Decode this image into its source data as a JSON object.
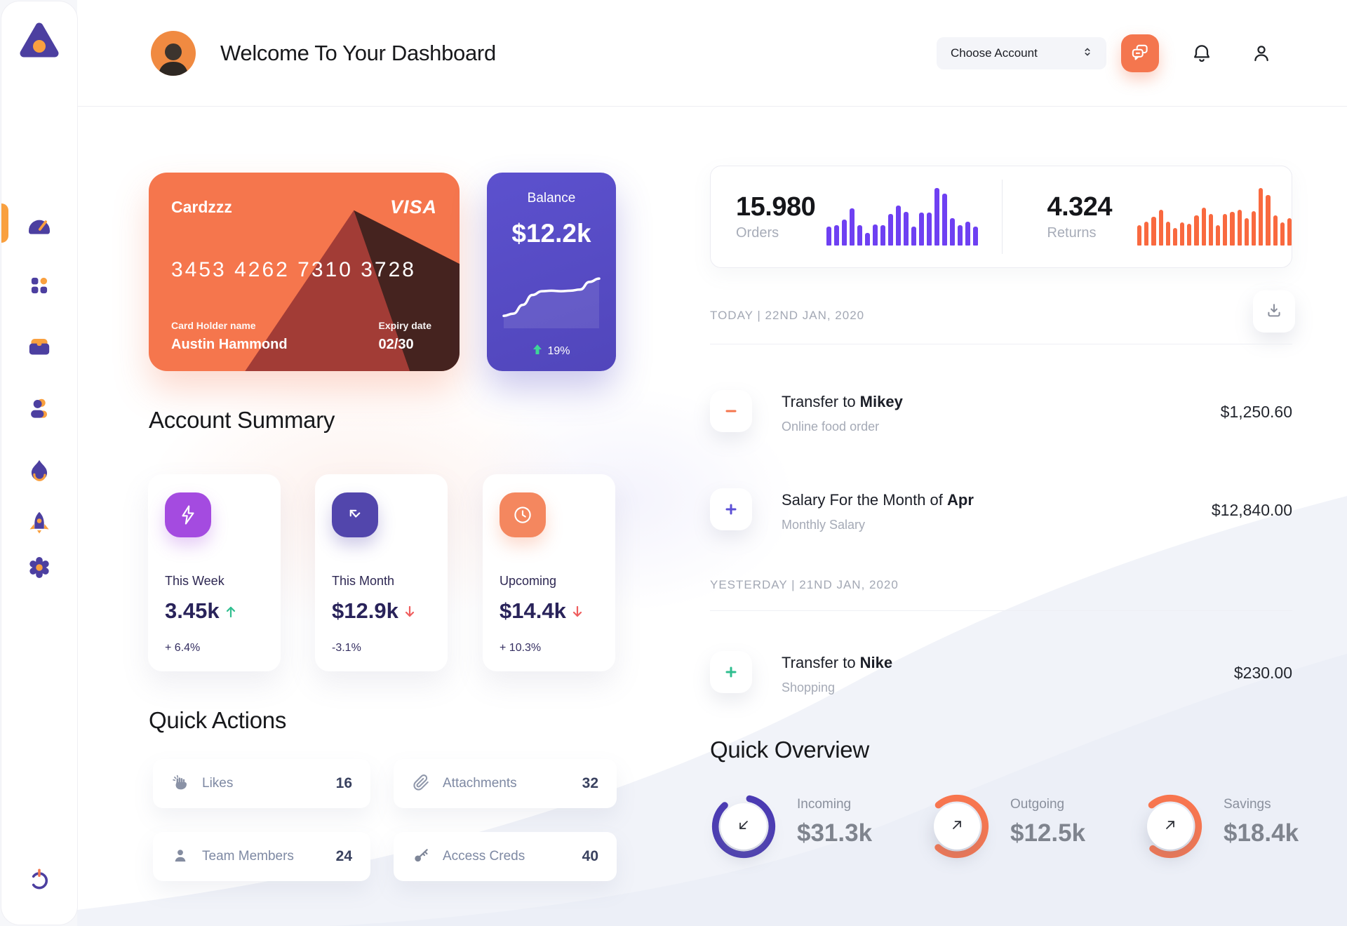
{
  "header": {
    "title": "Welcome To Your Dashboard",
    "account_selector": "Choose Account"
  },
  "credit_card": {
    "name": "Cardzzz",
    "brand": "VISA",
    "number": "3453 4262 7310 3728",
    "holder_label": "Card Holder name",
    "holder_name": "Austin Hammond",
    "expiry_label": "Expiry date",
    "expiry": "02/30"
  },
  "balance_card": {
    "label": "Balance",
    "value": "$12.2k",
    "change": "19%"
  },
  "account_summary": {
    "title": "Account Summary",
    "cards": [
      {
        "label": "This Week",
        "value": "3.45k",
        "delta": "+ 6.4%",
        "trend": "up",
        "icon": "lightning-icon",
        "icon_color": "#A44BE0"
      },
      {
        "label": "This Month",
        "value": "$12.9k",
        "delta": "-3.1%",
        "trend": "down",
        "icon": "arrow-up-left-icon",
        "icon_color": "#5246AC"
      },
      {
        "label": "Upcoming",
        "value": "$14.4k",
        "delta": "+ 10.3%",
        "trend": "down",
        "icon": "clock-icon",
        "icon_color": "#F4875F"
      }
    ]
  },
  "quick_actions": {
    "title": "Quick Actions",
    "items": [
      {
        "label": "Likes",
        "count": "16",
        "icon": "clap-icon"
      },
      {
        "label": "Attachments",
        "count": "32",
        "icon": "paperclip-icon"
      },
      {
        "label": "Team Members",
        "count": "24",
        "icon": "person-icon"
      },
      {
        "label": "Access Creds",
        "count": "40",
        "icon": "key-icon"
      }
    ]
  },
  "stats": {
    "orders": {
      "value": "15.980",
      "label": "Orders"
    },
    "returns": {
      "value": "4.324",
      "label": "Returns"
    }
  },
  "chart_data": [
    {
      "id": "orders-spark",
      "type": "bar",
      "title": "Orders activity sparkline",
      "values": [
        33,
        35,
        45,
        65,
        35,
        22,
        36,
        35,
        55,
        70,
        58,
        33,
        57,
        57,
        100,
        90,
        48,
        35,
        42,
        33
      ],
      "ylim": [
        0,
        100
      ],
      "color": "#6E40F2",
      "grid": false,
      "legend": false,
      "xlabel": "",
      "ylabel": ""
    },
    {
      "id": "returns-spark",
      "type": "bar",
      "title": "Returns activity sparkline",
      "values": [
        35,
        42,
        50,
        62,
        42,
        30,
        40,
        38,
        52,
        66,
        55,
        35,
        55,
        58,
        62,
        48,
        60,
        100,
        88,
        52,
        40,
        48
      ],
      "ylim": [
        0,
        100
      ],
      "color": "#F9693F",
      "grid": false,
      "legend": false,
      "xlabel": "",
      "ylabel": ""
    },
    {
      "id": "balance-line",
      "type": "line",
      "title": "Balance trend",
      "values": [
        10,
        14,
        30,
        48,
        55,
        56,
        55,
        56,
        58,
        72,
        78
      ],
      "ylim": [
        0,
        100
      ],
      "color": "#FFFFFF",
      "grid": false,
      "legend": false,
      "xlabel": "",
      "ylabel": ""
    }
  ],
  "transactions": {
    "groups": [
      {
        "date_header": "TODAY | 22ND JAN, 2020",
        "rows": [
          {
            "title_prefix": "Transfer to ",
            "title_bold": "Mikey",
            "subtitle": "Online food order",
            "amount": "$1,250.60",
            "sign": "minus",
            "sign_color": "#F4764E"
          },
          {
            "title_prefix": "Salary For the Month of ",
            "title_bold": "Apr",
            "subtitle": "Monthly Salary",
            "amount": "$12,840.00",
            "sign": "plus",
            "sign_color": "#5B4FD6"
          }
        ]
      },
      {
        "date_header": "YESTERDAY | 21ND JAN, 2020",
        "rows": [
          {
            "title_prefix": "Transfer to ",
            "title_bold": "Nike",
            "subtitle": "Shopping",
            "amount": "$230.00",
            "sign": "plus",
            "sign_color": "#2FBE8F"
          }
        ]
      }
    ]
  },
  "quick_overview": {
    "title": "Quick Overview",
    "items": [
      {
        "label": "Incoming",
        "value": "$31.3k",
        "percent": 85,
        "ring_color": "#4B3BB4",
        "rotate": -78,
        "arrow": "down-left"
      },
      {
        "label": "Outgoing",
        "value": "$12.5k",
        "percent": 73,
        "ring_color": "#F9764F",
        "rotate": -131,
        "arrow": "up-right"
      },
      {
        "label": "Savings",
        "value": "$18.4k",
        "percent": 72,
        "ring_color": "#F9764F",
        "rotate": -131,
        "arrow": "up-right"
      }
    ]
  },
  "sidebar": {
    "items": [
      "dashboard",
      "apps",
      "projects",
      "team",
      "activity",
      "launch",
      "settings"
    ],
    "logout": "power"
  },
  "colors": {
    "accent_orange": "#F4764E",
    "accent_purple": "#5B50CC",
    "bar_purple": "#6E40F2",
    "bar_orange": "#F9693F",
    "ring_purple": "#4B3BB4",
    "ring_orange": "#F9764F",
    "positive_green": "#2FBE8F",
    "negative_red": "#EF5E5E",
    "sidebar_icon_purple": "#4C3FA0",
    "sidebar_icon_orange": "#F9A03F"
  }
}
